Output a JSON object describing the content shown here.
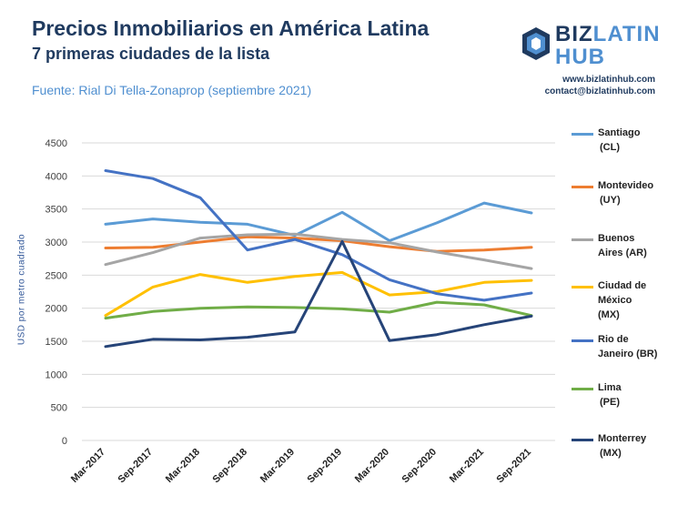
{
  "header": {
    "title": "Precios Inmobiliarios en América Latina",
    "subtitle": "7 primeras ciudades de la lista",
    "source": "Fuente:  Rial Di Tella-Zonaprop (septiembre 2021)"
  },
  "brand": {
    "logo_line1_main": "BIZ",
    "logo_line1_accent": "LATIN",
    "logo_line2": "HUB",
    "website": "www.bizlatinhub.com",
    "email": "contact@bizlatinhub.com",
    "logo_icon": "cube-icon"
  },
  "chart_data": {
    "type": "line",
    "title": "",
    "xlabel": "",
    "ylabel": "USD por metro  cuadrado",
    "ylim": [
      0,
      4500
    ],
    "yticks": [
      "0",
      "500",
      "1000",
      "1500",
      "2000",
      "2500",
      "3000",
      "3500",
      "4000",
      "4500"
    ],
    "grid": true,
    "legend_position": "right",
    "categories": [
      "Mar-2017",
      "Sep-2017",
      "Mar-2018",
      "Sep-2018",
      "Mar-2019",
      "Sep-2019",
      "Mar-2020",
      "Sep-2020",
      "Mar-2021",
      "Sep-2021"
    ],
    "series": [
      {
        "name": "Santiago (CL)",
        "color": "#5b9bd5",
        "values": [
          3270,
          3350,
          3300,
          3270,
          3100,
          3450,
          3020,
          3290,
          3590,
          3440
        ]
      },
      {
        "name": "Montevideo (UY)",
        "color": "#ed7d31",
        "values": [
          2910,
          2920,
          3000,
          3080,
          3060,
          3020,
          2930,
          2860,
          2880,
          2920
        ]
      },
      {
        "name": "Buenos Aires (AR)",
        "color": "#a5a5a5",
        "values": [
          2660,
          2840,
          3060,
          3110,
          3120,
          3040,
          2990,
          2850,
          2730,
          2600
        ]
      },
      {
        "name": "Ciudad de México (MX)",
        "color": "#ffc000",
        "values": [
          1890,
          2320,
          2510,
          2390,
          2480,
          2540,
          2200,
          2250,
          2390,
          2420
        ]
      },
      {
        "name": "Rio de Janeiro (BR)",
        "color": "#4472c4",
        "values": [
          4080,
          3960,
          3670,
          2880,
          3040,
          2810,
          2430,
          2220,
          2120,
          2230
        ]
      },
      {
        "name": "Lima (PE)",
        "color": "#70ad47",
        "values": [
          1850,
          1950,
          2000,
          2020,
          2010,
          1990,
          1940,
          2090,
          2050,
          1890
        ]
      },
      {
        "name": "Monterrey (MX)",
        "color": "#264478",
        "values": [
          1420,
          1530,
          1520,
          1560,
          1640,
          3010,
          1510,
          1600,
          1750,
          1880
        ]
      }
    ]
  },
  "legend": {
    "items": [
      {
        "line1": "Santiago",
        "line2": "(CL)",
        "color": "#5b9bd5"
      },
      {
        "line1": "Montevideo",
        "line2": "(UY)",
        "color": "#ed7d31"
      },
      {
        "line1": "Buenos",
        "line2": "Aires (AR)",
        "color": "#a5a5a5"
      },
      {
        "line1": "Ciudad de",
        "line2": "México",
        "line3": "(MX)",
        "color": "#ffc000"
      },
      {
        "line1": "Rio de",
        "line2": "Janeiro (BR)",
        "color": "#4472c4"
      },
      {
        "line1": "Lima",
        "line2": "(PE)",
        "color": "#70ad47"
      },
      {
        "line1": "Monterrey",
        "line2": "(MX)",
        "color": "#264478"
      }
    ]
  }
}
